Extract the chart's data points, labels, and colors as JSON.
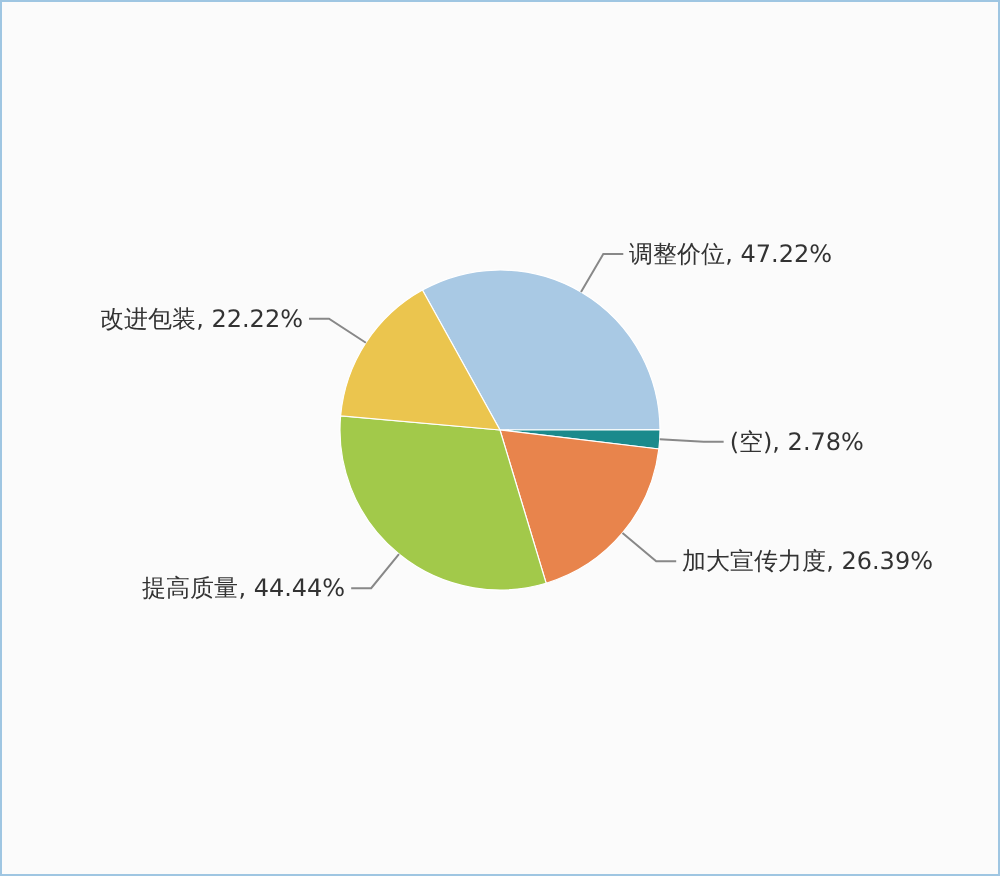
{
  "chart_data": {
    "type": "pie",
    "categories": [
      "调整价位",
      "(空)",
      "加大宣传力度",
      "提高质量",
      "改进包装"
    ],
    "values": [
      47.22,
      2.78,
      26.39,
      44.44,
      22.22
    ],
    "colors": [
      "#a9c9e4",
      "#1b8a8c",
      "#e8844c",
      "#a2c94a",
      "#ebc54e"
    ],
    "value_labels": [
      "47.22%",
      "2.78%",
      "26.39%",
      "44.44%",
      "22.22%"
    ]
  }
}
